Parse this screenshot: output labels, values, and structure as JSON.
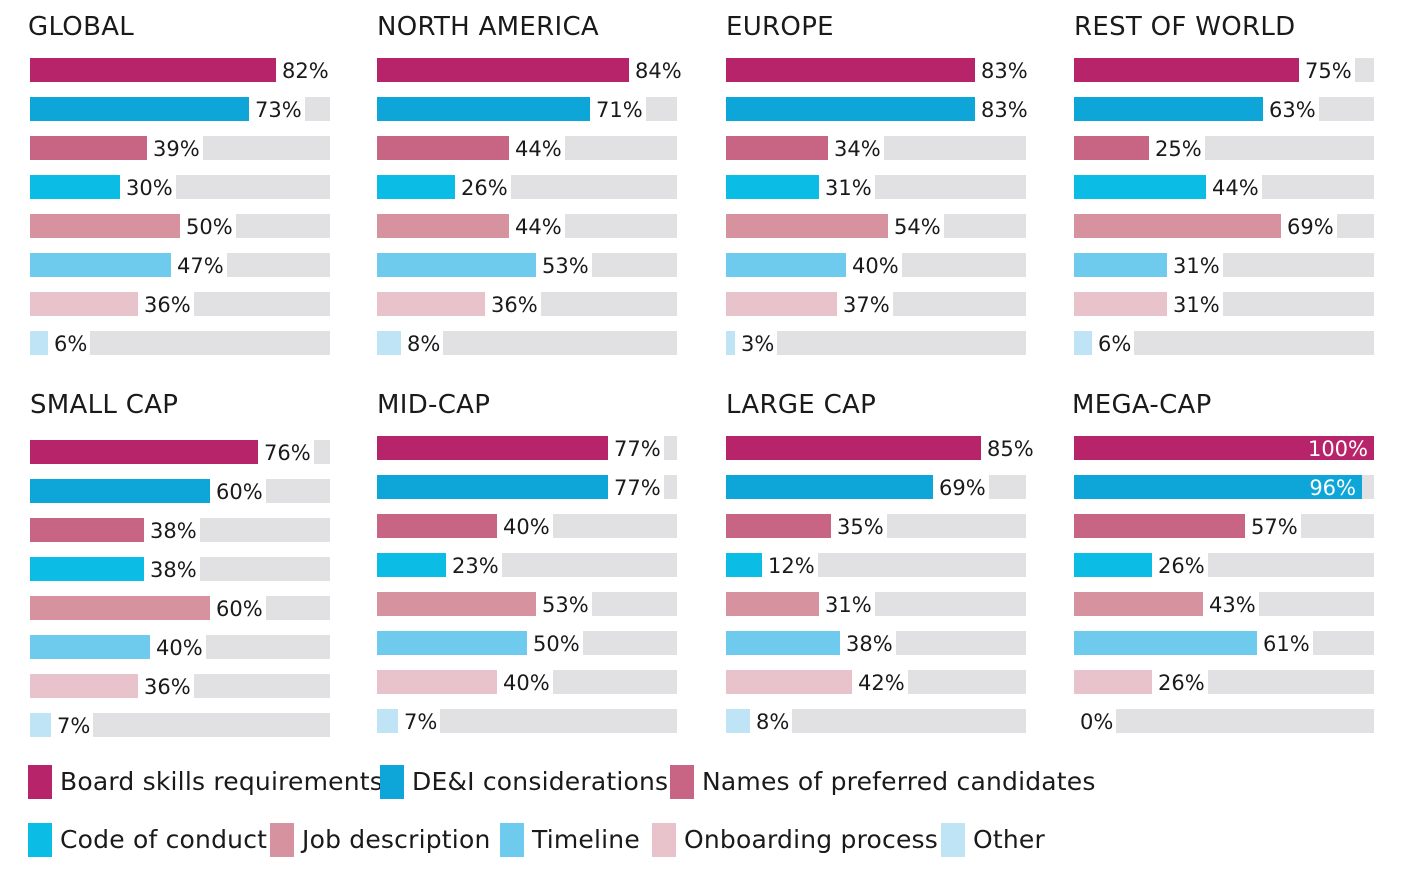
{
  "series_colors": [
    "#b8246a",
    "#0ea5d8",
    "#c96584",
    "#0bbde4",
    "#d6939f",
    "#6ecbed",
    "#e9c3cc",
    "#bfe4f5"
  ],
  "track_color": "#e1e1e3",
  "legend": [
    {
      "label": "Board skills requirements"
    },
    {
      "label": "DE&I considerations"
    },
    {
      "label": "Names of preferred candidates"
    },
    {
      "label": "Code of conduct"
    },
    {
      "label": "Job description"
    },
    {
      "label": "Timeline"
    },
    {
      "label": "Onboarding process"
    },
    {
      "label": "Other"
    }
  ],
  "chart_data": [
    {
      "type": "bar",
      "title": "GLOBAL",
      "xlim": [
        0,
        100
      ],
      "unit": "%",
      "values": [
        82,
        73,
        39,
        30,
        50,
        47,
        36,
        6
      ],
      "labels": [
        "82%",
        "73%",
        "39%",
        "30%",
        "50%",
        "47%",
        "36%",
        "6%"
      ]
    },
    {
      "type": "bar",
      "title": "NORTH AMERICA",
      "xlim": [
        0,
        100
      ],
      "unit": "%",
      "values": [
        84,
        71,
        44,
        26,
        44,
        53,
        36,
        8
      ],
      "labels": [
        "84%",
        "71%",
        "44%",
        "26%",
        "44%",
        "53%",
        "36%",
        "8%"
      ]
    },
    {
      "type": "bar",
      "title": "EUROPE",
      "xlim": [
        0,
        100
      ],
      "unit": "%",
      "values": [
        83,
        83,
        34,
        31,
        54,
        40,
        37,
        3
      ],
      "labels": [
        "83%",
        "83%",
        "34%",
        "31%",
        "54%",
        "40%",
        "37%",
        "3%"
      ]
    },
    {
      "type": "bar",
      "title": "REST OF WORLD",
      "xlim": [
        0,
        100
      ],
      "unit": "%",
      "values": [
        75,
        63,
        25,
        44,
        69,
        31,
        31,
        6
      ],
      "labels": [
        "75%",
        "63%",
        "25%",
        "44%",
        "69%",
        "31%",
        "31%",
        "6%"
      ]
    },
    {
      "type": "bar",
      "title": "SMALL CAP",
      "xlim": [
        0,
        100
      ],
      "unit": "%",
      "values": [
        76,
        60,
        38,
        38,
        60,
        40,
        36,
        7
      ],
      "labels": [
        "76%",
        "60%",
        "38%",
        "38%",
        "60%",
        "40%",
        "36%",
        "7%"
      ]
    },
    {
      "type": "bar",
      "title": "MID-CAP",
      "xlim": [
        0,
        100
      ],
      "unit": "%",
      "values": [
        77,
        77,
        40,
        23,
        53,
        50,
        40,
        7
      ],
      "labels": [
        "77%",
        "77%",
        "40%",
        "23%",
        "53%",
        "50%",
        "40%",
        "7%"
      ]
    },
    {
      "type": "bar",
      "title": "LARGE CAP",
      "xlim": [
        0,
        100
      ],
      "unit": "%",
      "values": [
        85,
        69,
        35,
        12,
        31,
        38,
        42,
        8
      ],
      "labels": [
        "85%",
        "69%",
        "35%",
        "12%",
        "31%",
        "38%",
        "42%",
        "8%"
      ]
    },
    {
      "type": "bar",
      "title": "MEGA-CAP",
      "xlim": [
        0,
        100
      ],
      "unit": "%",
      "values": [
        100,
        96,
        57,
        26,
        43,
        61,
        26,
        0
      ],
      "labels": [
        "100%",
        "96%",
        "57%",
        "26%",
        "43%",
        "61%",
        "26%",
        "0%"
      ]
    }
  ]
}
